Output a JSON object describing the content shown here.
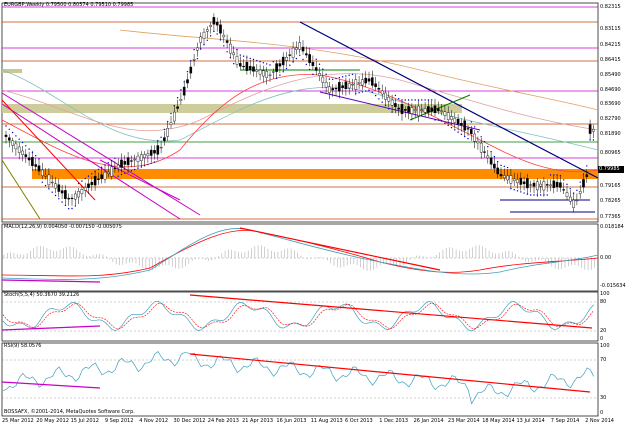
{
  "main": {
    "title": "EURGBP,Weekly",
    "ohlc": "0.79500 0.80574 0.79510 0.79985",
    "price_ticks": [
      "0.82315",
      "0.83115",
      "0.84215",
      "0.86415",
      "0.85490",
      "0.84690",
      "0.83690",
      "0.82790",
      "0.81890",
      "0.80965",
      "0.79985",
      "0.79165",
      "0.78265",
      "0.77365"
    ],
    "last_price": "0.79985"
  },
  "macd": {
    "label": "MACD(12,26,9) 0.004050 -0.007150 -0.005075",
    "ticks": [
      "0.018184",
      "0.00",
      "-0.015634"
    ]
  },
  "stoch": {
    "label": "Stoch(5,5,4) 50.3670 39.2126",
    "ticks": [
      "100",
      "80",
      "20",
      "0"
    ]
  },
  "rsi": {
    "label": "RSI(9) 58.0576",
    "ticks": [
      "100",
      "70",
      "30",
      "0"
    ]
  },
  "copyright": "BOSSAFX, ©2001-2014, MetaQuotes Software Corp.",
  "x_ticks": [
    "25 Mar 2012",
    "20 May 2012",
    "15 Jul 2012",
    "9 Sep 2012",
    "4 Nov 2012",
    "30 Dec 2012",
    "24 Feb 2013",
    "21 Apr 2013",
    "16 Jun 2013",
    "11 Aug 2013",
    "6 Oct 2013",
    "1 Dec 2013",
    "26 Jan 2014",
    "23 Mar 2014",
    "18 May 2014",
    "13 Jul 2014",
    "7 Sep 2014",
    "2 Nov 2014"
  ],
  "colors": {
    "up": "#000000",
    "support_zone": "#ff8c00",
    "resistance_zone": "#c8c890",
    "trend": "#ff0000",
    "channel": "#c800c8",
    "downtrend": "#000080"
  }
}
